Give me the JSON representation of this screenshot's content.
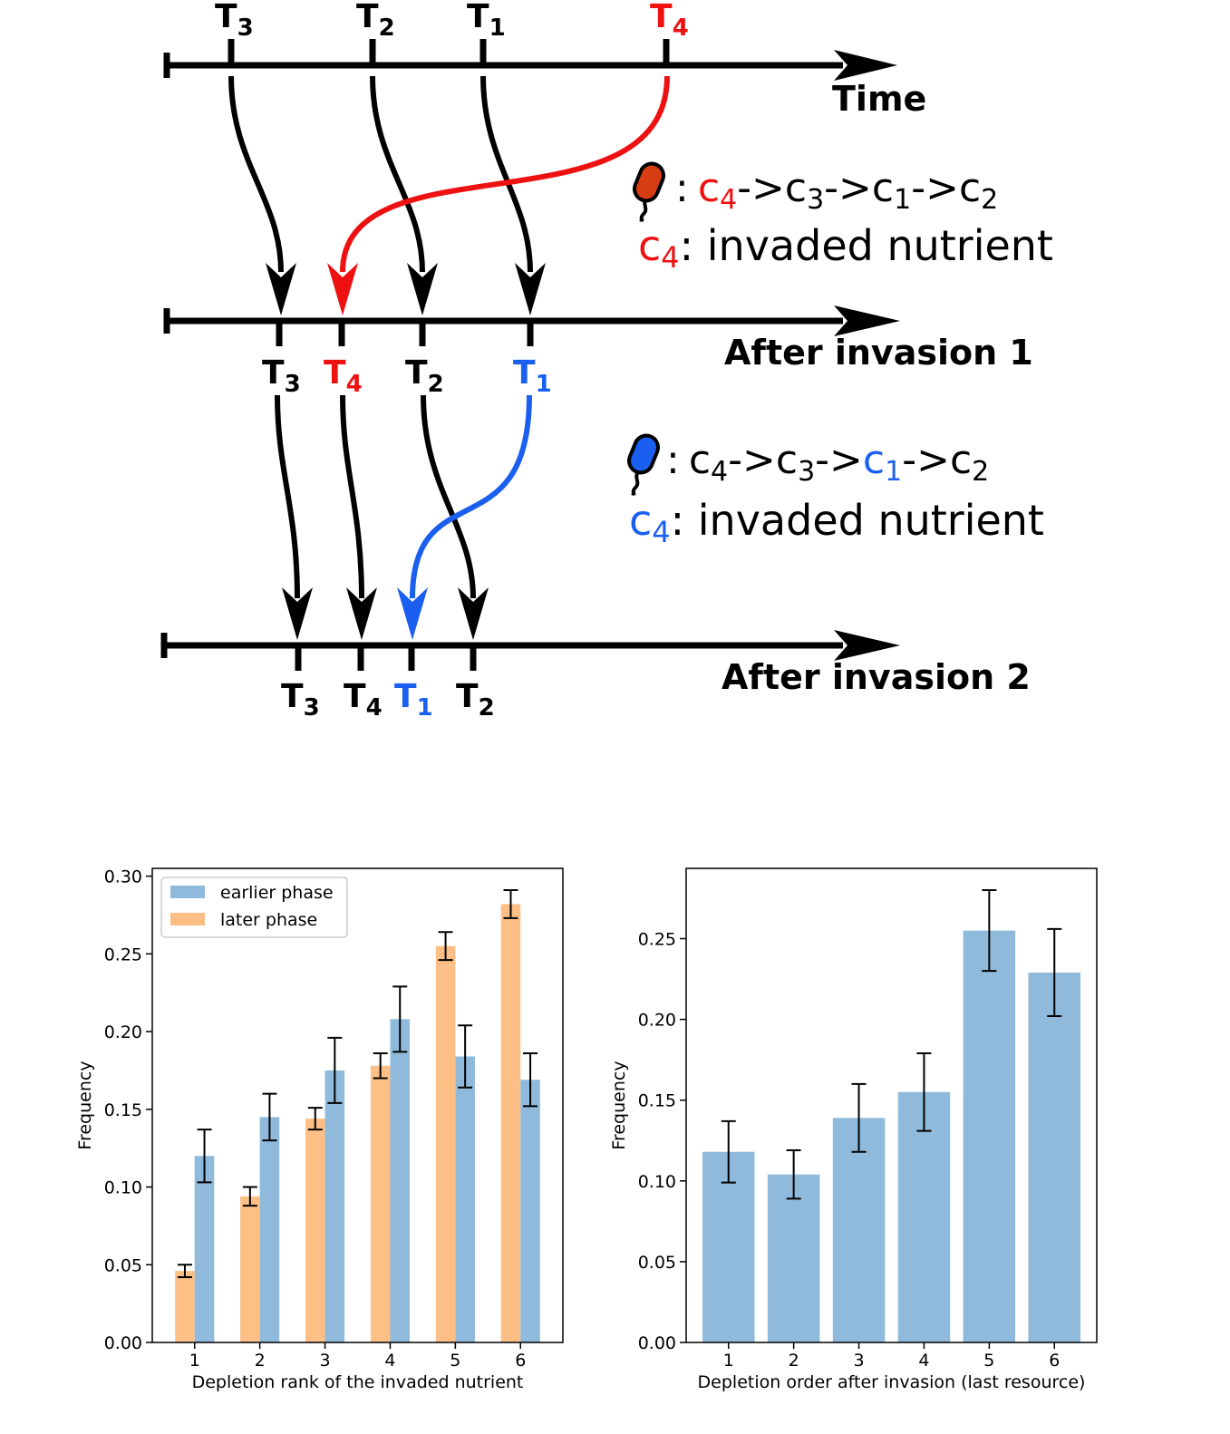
{
  "diagram": {
    "timelines": [
      {
        "title": "Time",
        "ticks": [
          {
            "base": "T",
            "sub": "3",
            "color": "#000000"
          },
          {
            "base": "T",
            "sub": "2",
            "color": "#000000"
          },
          {
            "base": "T",
            "sub": "1",
            "color": "#000000"
          },
          {
            "base": "T",
            "sub": "4",
            "color": "#ee1111"
          }
        ]
      },
      {
        "title": "After invasion 1",
        "ticks": [
          {
            "base": "T",
            "sub": "3",
            "color": "#000000"
          },
          {
            "base": "T",
            "sub": "4",
            "color": "#ee1111"
          },
          {
            "base": "T",
            "sub": "2",
            "color": "#000000"
          },
          {
            "base": "T",
            "sub": "1",
            "color": "#1a5ff0"
          }
        ]
      },
      {
        "title": "After invasion 2",
        "ticks": [
          {
            "base": "T",
            "sub": "3",
            "color": "#000000"
          },
          {
            "base": "T",
            "sub": "4",
            "color": "#000000"
          },
          {
            "base": "T",
            "sub": "1",
            "color": "#1a5ff0"
          },
          {
            "base": "T",
            "sub": "2",
            "color": "#000000"
          }
        ]
      }
    ],
    "legends": [
      {
        "microbe_icon": "red-microbe-icon",
        "microbe_color": "#d63d12",
        "order_sep": ":",
        "arrow": "->",
        "order": [
          {
            "base": "c",
            "sub": "4",
            "color": "#ee1111"
          },
          {
            "base": "c",
            "sub": "3",
            "color": "#000000"
          },
          {
            "base": "c",
            "sub": "1",
            "color": "#000000"
          },
          {
            "base": "c",
            "sub": "2",
            "color": "#000000"
          }
        ],
        "invaded": {
          "base": "c",
          "sub": "4",
          "color": "#ee1111",
          "text": ": invaded nutrient"
        }
      },
      {
        "microbe_icon": "blue-microbe-icon",
        "microbe_color": "#1a5ff0",
        "order_sep": ":",
        "arrow": "->",
        "order": [
          {
            "base": "c",
            "sub": "4",
            "color": "#000000"
          },
          {
            "base": "c",
            "sub": "3",
            "color": "#000000"
          },
          {
            "base": "c",
            "sub": "1",
            "color": "#1a5ff0"
          },
          {
            "base": "c",
            "sub": "2",
            "color": "#000000"
          }
        ],
        "invaded": {
          "base": "c",
          "sub": "4",
          "color": "#1a5ff0",
          "text": ": invaded nutrient"
        }
      }
    ]
  },
  "chart_data": [
    {
      "type": "bar",
      "categories": [
        "1",
        "2",
        "3",
        "4",
        "5",
        "6"
      ],
      "xlabel": "Depletion rank of the invaded nutrient",
      "ylabel": "Frequency",
      "ylim": [
        0,
        0.305
      ],
      "yticks": [
        "0.00",
        "0.05",
        "0.10",
        "0.15",
        "0.20",
        "0.25",
        "0.30"
      ],
      "legend_position": "upper-left",
      "series": [
        {
          "name": "later phase",
          "color": "#fdbf85",
          "values": [
            0.046,
            0.094,
            0.144,
            0.178,
            0.255,
            0.282
          ],
          "errors": [
            0.004,
            0.006,
            0.007,
            0.008,
            0.009,
            0.009
          ]
        },
        {
          "name": "earlier phase",
          "color": "#8fbadb",
          "values": [
            0.12,
            0.145,
            0.175,
            0.208,
            0.184,
            0.169
          ],
          "errors": [
            0.017,
            0.015,
            0.021,
            0.021,
            0.02,
            0.017
          ]
        }
      ]
    },
    {
      "type": "bar",
      "categories": [
        "1",
        "2",
        "3",
        "4",
        "5",
        "6"
      ],
      "xlabel": "Depletion order after invasion (last resource)",
      "ylabel": "Frequency",
      "ylim": [
        0,
        0.2935
      ],
      "yticks": [
        "0.00",
        "0.05",
        "0.10",
        "0.15",
        "0.20",
        "0.25"
      ],
      "series": [
        {
          "color": "#8fbadb",
          "values": [
            0.118,
            0.104,
            0.139,
            0.155,
            0.255,
            0.229
          ],
          "errors": [
            0.019,
            0.015,
            0.021,
            0.024,
            0.025,
            0.027
          ]
        }
      ]
    }
  ]
}
